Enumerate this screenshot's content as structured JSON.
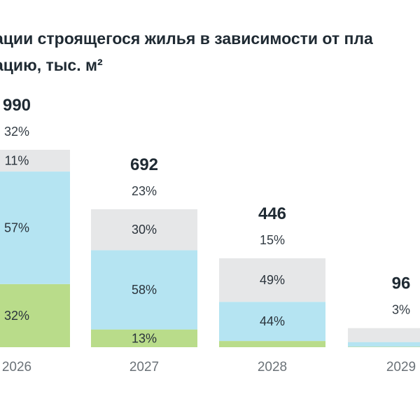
{
  "title": "ации строящегося жилья в зависимости от пла\nацию, тыс. м²",
  "colors": {
    "segment_green": "#b9dc8a",
    "segment_blue": "#b5e4f2",
    "segment_gray": "#e6e7e8",
    "text_dark": "#1f2a33",
    "text_muted": "#6b7278"
  },
  "chart_data": {
    "type": "bar",
    "stacked": true,
    "categories": [
      "2026",
      "2027",
      "2028",
      "2029"
    ],
    "totals": [
      990,
      692,
      446,
      96
    ],
    "total_labels": [
      "990",
      "692",
      "446",
      "96"
    ],
    "total_share_labels": [
      "32%",
      "23%",
      "15%",
      "3%"
    ],
    "segment_shares": [
      [
        32,
        57,
        11
      ],
      [
        13,
        58,
        30
      ],
      [
        7,
        44,
        49
      ],
      [
        2,
        25,
        73
      ]
    ],
    "segment_labels": [
      [
        "32%",
        "57%",
        "11%"
      ],
      [
        "13%",
        "58%",
        "30%"
      ],
      [
        "",
        "44%",
        "49%"
      ],
      [
        "",
        "",
        ""
      ]
    ],
    "segment_colors": [
      "#b9dc8a",
      "#b5e4f2",
      "#e6e7e8"
    ],
    "ylim": [
      0,
      1000
    ],
    "legend": "none",
    "grid": false
  }
}
